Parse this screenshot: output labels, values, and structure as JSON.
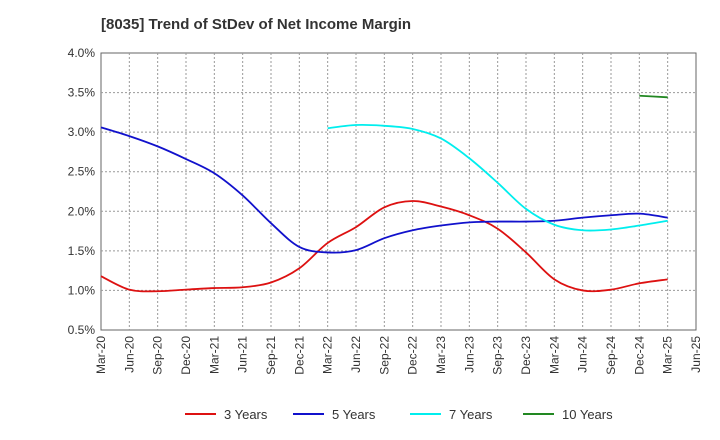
{
  "chart_data": {
    "type": "line",
    "title": "[8035]  Trend of StDev of Net Income Margin",
    "xlabel": "",
    "ylabel": "",
    "x_ticks": [
      "Mar-20",
      "Jun-20",
      "Sep-20",
      "Dec-20",
      "Mar-21",
      "Jun-21",
      "Sep-21",
      "Dec-21",
      "Mar-22",
      "Jun-22",
      "Sep-22",
      "Dec-22",
      "Mar-23",
      "Jun-23",
      "Sep-23",
      "Dec-23",
      "Mar-24",
      "Jun-24",
      "Sep-24",
      "Dec-24",
      "Mar-25",
      "Jun-25"
    ],
    "y_ticks": [
      "0.5%",
      "1.0%",
      "1.5%",
      "2.0%",
      "2.5%",
      "3.0%",
      "3.5%",
      "4.0%"
    ],
    "ylim": [
      0.5,
      4.0
    ],
    "grid": true,
    "legend_position": "bottom",
    "series": [
      {
        "name": "3 Years",
        "color": "#dd1111",
        "x": [
          "Mar-20",
          "Jun-20",
          "Sep-20",
          "Dec-20",
          "Mar-21",
          "Jun-21",
          "Sep-21",
          "Dec-21",
          "Mar-22",
          "Jun-22",
          "Sep-22",
          "Dec-22",
          "Mar-23",
          "Jun-23",
          "Sep-23",
          "Dec-23",
          "Mar-24",
          "Jun-24",
          "Sep-24",
          "Dec-24",
          "Mar-25"
        ],
        "values": [
          1.18,
          1.01,
          0.99,
          1.01,
          1.03,
          1.04,
          1.1,
          1.28,
          1.6,
          1.8,
          2.05,
          2.13,
          2.06,
          1.95,
          1.78,
          1.48,
          1.14,
          1.0,
          1.01,
          1.09,
          1.14
        ]
      },
      {
        "name": "5 Years",
        "color": "#1111cc",
        "x": [
          "Mar-20",
          "Jun-20",
          "Sep-20",
          "Dec-20",
          "Mar-21",
          "Jun-21",
          "Sep-21",
          "Dec-21",
          "Mar-22",
          "Jun-22",
          "Sep-22",
          "Dec-22",
          "Mar-23",
          "Jun-23",
          "Sep-23",
          "Dec-23",
          "Mar-24",
          "Jun-24",
          "Sep-24",
          "Dec-24",
          "Mar-25"
        ],
        "values": [
          3.06,
          2.95,
          2.82,
          2.66,
          2.48,
          2.2,
          1.85,
          1.55,
          1.48,
          1.51,
          1.66,
          1.76,
          1.82,
          1.86,
          1.87,
          1.87,
          1.88,
          1.92,
          1.95,
          1.97,
          1.92
        ]
      },
      {
        "name": "7 Years",
        "color": "#00eeee",
        "x": [
          "Mar-22",
          "Jun-22",
          "Sep-22",
          "Dec-22",
          "Mar-23",
          "Jun-23",
          "Sep-23",
          "Dec-23",
          "Mar-24",
          "Jun-24",
          "Sep-24",
          "Dec-24",
          "Mar-25"
        ],
        "values": [
          3.05,
          3.09,
          3.08,
          3.04,
          2.92,
          2.67,
          2.36,
          2.03,
          1.83,
          1.76,
          1.77,
          1.82,
          1.88
        ]
      },
      {
        "name": "10 Years",
        "color": "#228822",
        "x": [
          "Dec-24",
          "Mar-25"
        ],
        "values": [
          3.46,
          3.44
        ]
      }
    ]
  }
}
